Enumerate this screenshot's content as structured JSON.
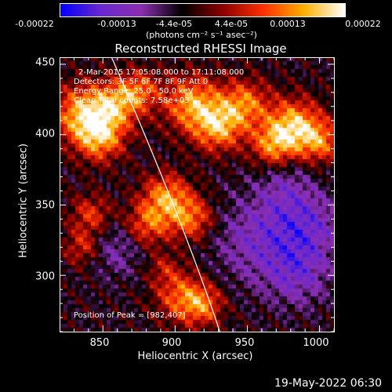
{
  "chart_data": {
    "type": "heatmap",
    "title": "Reconstructed RHESSI Image",
    "xlabel": "Heliocentric X (arcsec)",
    "ylabel": "Heliocentric Y (arcsec)",
    "xlim": [
      820,
      1010
    ],
    "ylim": [
      260,
      455
    ],
    "x_ticks": [
      "850",
      "900",
      "950",
      "1000"
    ],
    "y_ticks": [
      "450",
      "400",
      "350",
      "300"
    ],
    "colorbar": {
      "range": [
        -0.00022,
        0.00022
      ],
      "tick_labels": [
        "-0.00022",
        "-0.00013",
        "-4.4e-05",
        "4.4e-05",
        "0.00013",
        "0.00022"
      ],
      "units": "(photons cm⁻² s⁻¹ asec⁻²)",
      "colors": [
        "#0000ff",
        "#6a28d0",
        "#8c2eb0",
        "#000000",
        "#8c0000",
        "#ff3000",
        "#ffb000",
        "#ffffff"
      ]
    },
    "annotations": {
      "time": "2-Mar-2015 17:05:08.000 to 17:11:08.000",
      "detectors": "Detectors: 3F 5F 6F 7F 8F 9F  Att 0",
      "energy": "Energy Range: 25.0 - 50.0 keV",
      "method": "Clean    Total counts: 7.58e+03",
      "peak": "Position of Peak = [982,407]"
    },
    "sources": [
      {
        "x": 836,
        "y": 415,
        "amp": 1.0,
        "w": 14
      },
      {
        "x": 848,
        "y": 398,
        "amp": 0.9,
        "w": 12
      },
      {
        "x": 860,
        "y": 422,
        "amp": 0.8,
        "w": 12
      },
      {
        "x": 876,
        "y": 432,
        "amp": 0.6,
        "w": 10
      },
      {
        "x": 912,
        "y": 422,
        "amp": 0.95,
        "w": 14
      },
      {
        "x": 930,
        "y": 405,
        "amp": 0.9,
        "w": 12
      },
      {
        "x": 948,
        "y": 422,
        "amp": 0.8,
        "w": 12
      },
      {
        "x": 982,
        "y": 407,
        "amp": 1.0,
        "w": 13
      },
      {
        "x": 968,
        "y": 392,
        "amp": 0.8,
        "w": 11
      },
      {
        "x": 1000,
        "y": 395,
        "amp": 0.75,
        "w": 11
      },
      {
        "x": 894,
        "y": 355,
        "amp": 0.9,
        "w": 12
      },
      {
        "x": 880,
        "y": 335,
        "amp": 0.7,
        "w": 11
      },
      {
        "x": 912,
        "y": 340,
        "amp": 0.75,
        "w": 11
      },
      {
        "x": 842,
        "y": 343,
        "amp": 0.6,
        "w": 10
      },
      {
        "x": 836,
        "y": 320,
        "amp": 0.55,
        "w": 9
      },
      {
        "x": 905,
        "y": 285,
        "amp": 0.75,
        "w": 13
      },
      {
        "x": 920,
        "y": 278,
        "amp": 0.6,
        "w": 10
      },
      {
        "x": 892,
        "y": 305,
        "amp": 0.35,
        "w": 8
      },
      {
        "x": 955,
        "y": 325,
        "amp": -0.45,
        "w": 22
      },
      {
        "x": 990,
        "y": 335,
        "amp": -0.55,
        "w": 18
      },
      {
        "x": 985,
        "y": 300,
        "amp": -0.45,
        "w": 16
      },
      {
        "x": 860,
        "y": 320,
        "amp": -0.4,
        "w": 14
      },
      {
        "x": 975,
        "y": 365,
        "amp": -0.3,
        "w": 14
      }
    ],
    "limb": [
      [
        856,
        455
      ],
      [
        905,
        340
      ],
      [
        931,
        260
      ]
    ],
    "peak": [
      982,
      407
    ]
  },
  "footer": {
    "date": "19-May-2022 06:30"
  }
}
